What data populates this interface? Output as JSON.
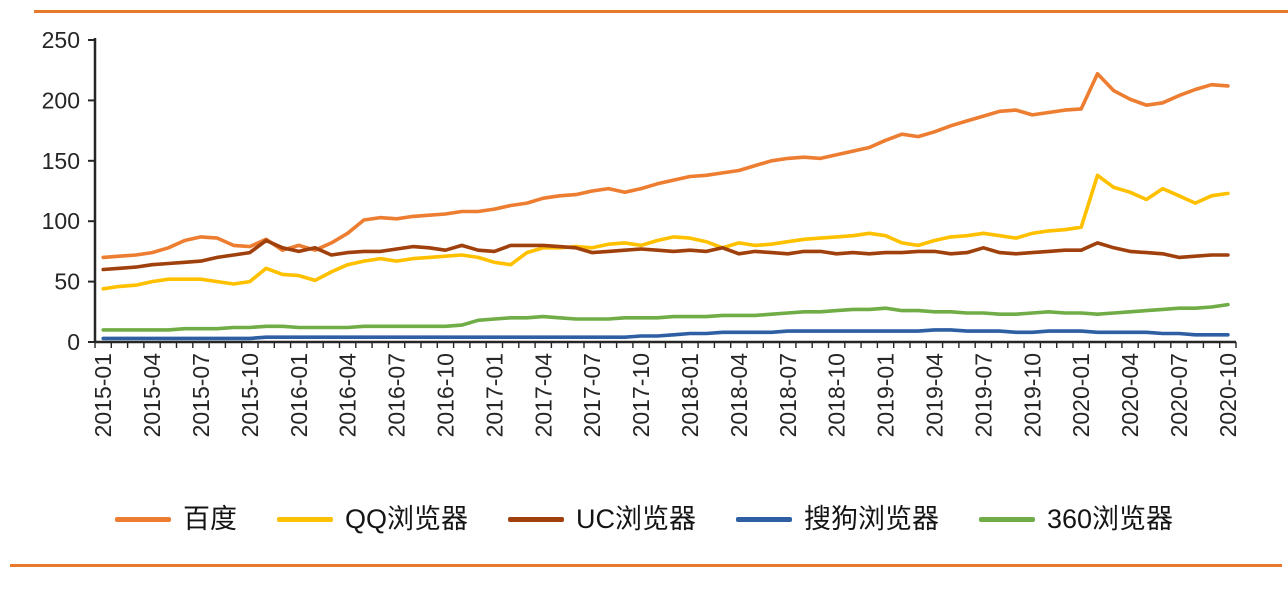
{
  "page": {
    "background": "#ffffff",
    "rule_color": "#E8782A",
    "axis_color": "#262626",
    "tick_label_color": "#262626"
  },
  "chart_data": {
    "type": "line",
    "title": "",
    "xlabel": "",
    "ylabel": "",
    "grid": false,
    "legend_position": "bottom",
    "ylim": [
      0,
      250
    ],
    "yticks": [
      0,
      50,
      100,
      150,
      200,
      250
    ],
    "x": [
      "2015-01",
      "2015-02",
      "2015-03",
      "2015-04",
      "2015-05",
      "2015-06",
      "2015-07",
      "2015-08",
      "2015-09",
      "2015-10",
      "2015-11",
      "2015-12",
      "2016-01",
      "2016-02",
      "2016-03",
      "2016-04",
      "2016-05",
      "2016-06",
      "2016-07",
      "2016-08",
      "2016-09",
      "2016-10",
      "2016-11",
      "2016-12",
      "2017-01",
      "2017-02",
      "2017-03",
      "2017-04",
      "2017-05",
      "2017-06",
      "2017-07",
      "2017-08",
      "2017-09",
      "2017-10",
      "2017-11",
      "2017-12",
      "2018-01",
      "2018-02",
      "2018-03",
      "2018-04",
      "2018-05",
      "2018-06",
      "2018-07",
      "2018-08",
      "2018-09",
      "2018-10",
      "2018-11",
      "2018-12",
      "2019-01",
      "2019-02",
      "2019-03",
      "2019-04",
      "2019-05",
      "2019-06",
      "2019-07",
      "2019-08",
      "2019-09",
      "2019-10",
      "2019-11",
      "2019-12",
      "2020-01",
      "2020-02",
      "2020-03",
      "2020-04",
      "2020-05",
      "2020-06",
      "2020-07",
      "2020-08",
      "2020-09",
      "2020-10"
    ],
    "x_tick_labels": [
      "2015-01",
      "2015-04",
      "2015-07",
      "2015-10",
      "2016-01",
      "2016-04",
      "2016-07",
      "2016-10",
      "2017-01",
      "2017-04",
      "2017-07",
      "2017-10",
      "2018-01",
      "2018-04",
      "2018-07",
      "2018-10",
      "2019-01",
      "2019-04",
      "2019-07",
      "2019-10",
      "2020-01",
      "2020-04",
      "2020-07",
      "2020-10"
    ],
    "x_label_every": 3,
    "series": [
      {
        "key": "baidu",
        "name": "百度",
        "color": "#ED7D31",
        "values": [
          70,
          71,
          72,
          74,
          78,
          84,
          87,
          86,
          80,
          79,
          85,
          76,
          80,
          76,
          82,
          90,
          101,
          103,
          102,
          104,
          105,
          106,
          108,
          108,
          110,
          113,
          115,
          119,
          121,
          122,
          125,
          127,
          124,
          127,
          131,
          134,
          137,
          138,
          140,
          142,
          146,
          150,
          152,
          153,
          152,
          155,
          158,
          161,
          167,
          172,
          170,
          174,
          179,
          183,
          187,
          191,
          192,
          188,
          190,
          192,
          193,
          222,
          208,
          201,
          196,
          198,
          204,
          209,
          213,
          212
        ]
      },
      {
        "key": "qq-browser",
        "name": "QQ浏览器",
        "color": "#FFC000",
        "values": [
          44,
          46,
          47,
          50,
          52,
          52,
          52,
          50,
          48,
          50,
          61,
          56,
          55,
          51,
          58,
          64,
          67,
          69,
          67,
          69,
          70,
          71,
          72,
          70,
          66,
          64,
          74,
          78,
          78,
          79,
          78,
          81,
          82,
          80,
          84,
          87,
          86,
          83,
          78,
          82,
          80,
          81,
          83,
          85,
          86,
          87,
          88,
          90,
          88,
          82,
          80,
          84,
          87,
          88,
          90,
          88,
          86,
          90,
          92,
          93,
          95,
          138,
          128,
          124,
          118,
          127,
          121,
          115,
          121,
          123
        ]
      },
      {
        "key": "uc-browser",
        "name": "UC浏览器",
        "color": "#A0410D",
        "values": [
          60,
          61,
          62,
          64,
          65,
          66,
          67,
          70,
          72,
          74,
          84,
          78,
          75,
          78,
          72,
          74,
          75,
          75,
          77,
          79,
          78,
          76,
          80,
          76,
          75,
          80,
          80,
          80,
          79,
          78,
          74,
          75,
          76,
          77,
          76,
          75,
          76,
          75,
          78,
          73,
          75,
          74,
          73,
          75,
          75,
          73,
          74,
          73,
          74,
          74,
          75,
          75,
          73,
          74,
          78,
          74,
          73,
          74,
          75,
          76,
          76,
          82,
          78,
          75,
          74,
          73,
          70,
          71,
          72,
          72
        ]
      },
      {
        "key": "sogou-browser",
        "name": "搜狗浏览器",
        "color": "#2E5FA3",
        "values": [
          3,
          3,
          3,
          3,
          3,
          3,
          3,
          3,
          3,
          3,
          4,
          4,
          4,
          4,
          4,
          4,
          4,
          4,
          4,
          4,
          4,
          4,
          4,
          4,
          4,
          4,
          4,
          4,
          4,
          4,
          4,
          4,
          4,
          5,
          5,
          6,
          7,
          7,
          8,
          8,
          8,
          8,
          9,
          9,
          9,
          9,
          9,
          9,
          9,
          9,
          9,
          10,
          10,
          9,
          9,
          9,
          8,
          8,
          9,
          9,
          9,
          8,
          8,
          8,
          8,
          7,
          7,
          6,
          6,
          6
        ]
      },
      {
        "key": "360-browser",
        "name": "360浏览器",
        "color": "#70AD47",
        "values": [
          10,
          10,
          10,
          10,
          10,
          11,
          11,
          11,
          12,
          12,
          13,
          13,
          12,
          12,
          12,
          12,
          13,
          13,
          13,
          13,
          13,
          13,
          14,
          18,
          19,
          20,
          20,
          21,
          20,
          19,
          19,
          19,
          20,
          20,
          20,
          21,
          21,
          21,
          22,
          22,
          22,
          23,
          24,
          25,
          25,
          26,
          27,
          27,
          28,
          26,
          26,
          25,
          25,
          24,
          24,
          23,
          23,
          24,
          25,
          24,
          24,
          23,
          24,
          25,
          26,
          27,
          28,
          28,
          29,
          31
        ]
      }
    ]
  }
}
